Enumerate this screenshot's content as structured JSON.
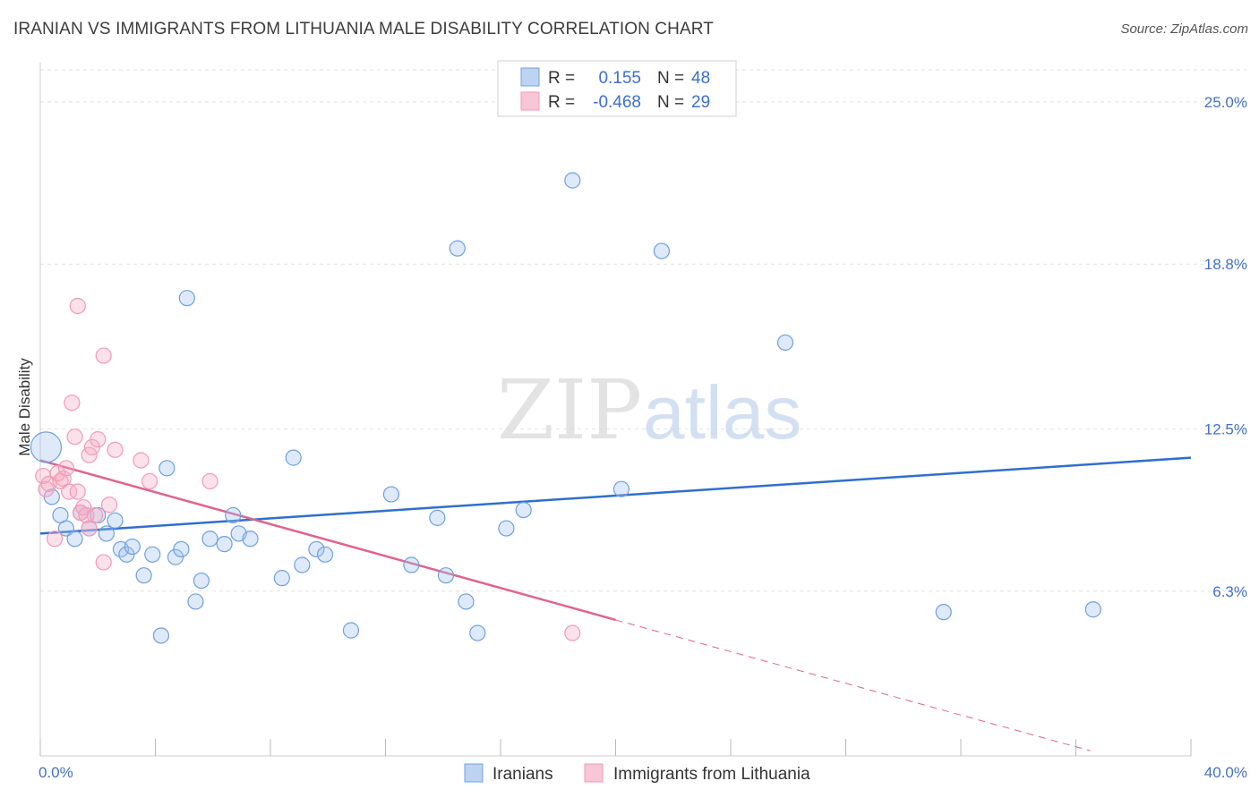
{
  "title": "IRANIAN VS IMMIGRANTS FROM LITHUANIA MALE DISABILITY CORRELATION CHART",
  "source": "Source: ZipAtlas.com",
  "watermark": {
    "zip": "ZIP",
    "atlas": "atlas"
  },
  "chart_data": {
    "type": "scatter",
    "title": "IRANIAN VS IMMIGRANTS FROM LITHUANIA MALE DISABILITY CORRELATION CHART",
    "xlabel": "",
    "ylabel": "Male Disability",
    "xlim": [
      0,
      40
    ],
    "ylim": [
      0,
      26.5
    ],
    "x_tick_labels": [
      "0.0%",
      "40.0%"
    ],
    "y_ticks": [
      6.3,
      12.5,
      18.8,
      25.0
    ],
    "y_tick_labels": [
      "6.3%",
      "12.5%",
      "18.8%",
      "25.0%"
    ],
    "grid": true,
    "legend_position": "top-center",
    "stats": [
      {
        "r_label": "R =",
        "r": "0.155",
        "n_label": "N =",
        "n": "48"
      },
      {
        "r_label": "R =",
        "r": "-0.468",
        "n_label": "N =",
        "n": "29"
      }
    ],
    "series": [
      {
        "name": "Iranians",
        "color": "#6fa0e0",
        "line_color": "#2f6fcc",
        "trend": {
          "x0": 0,
          "y0": 8.5,
          "x1": 40,
          "y1": 11.4
        },
        "points": [
          [
            0.2,
            11.8,
            28
          ],
          [
            0.4,
            9.9,
            12
          ],
          [
            0.7,
            9.2,
            10
          ],
          [
            0.9,
            8.7,
            10
          ],
          [
            1.2,
            8.3,
            10
          ],
          [
            1.4,
            9.3,
            10
          ],
          [
            1.7,
            8.7,
            10
          ],
          [
            2.0,
            9.2,
            10
          ],
          [
            2.3,
            8.5,
            10
          ],
          [
            2.6,
            9.0,
            10
          ],
          [
            2.8,
            7.9,
            10
          ],
          [
            3.0,
            7.7,
            10
          ],
          [
            3.2,
            8.0,
            10
          ],
          [
            3.6,
            6.9,
            10
          ],
          [
            3.9,
            7.7,
            10
          ],
          [
            4.2,
            4.6,
            10
          ],
          [
            4.4,
            11.0,
            10
          ],
          [
            4.7,
            7.6,
            10
          ],
          [
            4.9,
            7.9,
            10
          ],
          [
            5.1,
            17.5,
            10
          ],
          [
            5.4,
            5.9,
            10
          ],
          [
            5.6,
            6.7,
            10
          ],
          [
            5.9,
            8.3,
            10
          ],
          [
            6.4,
            8.1,
            10
          ],
          [
            6.7,
            9.2,
            10
          ],
          [
            6.9,
            8.5,
            10
          ],
          [
            7.3,
            8.3,
            10
          ],
          [
            8.4,
            6.8,
            10
          ],
          [
            8.8,
            11.4,
            10
          ],
          [
            9.1,
            7.3,
            10
          ],
          [
            9.6,
            7.9,
            10
          ],
          [
            9.9,
            7.7,
            10
          ],
          [
            10.8,
            4.8,
            10
          ],
          [
            12.2,
            10.0,
            10
          ],
          [
            12.9,
            7.3,
            10
          ],
          [
            13.8,
            9.1,
            10
          ],
          [
            14.1,
            6.9,
            10
          ],
          [
            14.5,
            19.4,
            10
          ],
          [
            14.8,
            5.9,
            10
          ],
          [
            15.2,
            4.7,
            10
          ],
          [
            16.2,
            8.7,
            10
          ],
          [
            16.8,
            9.4,
            10
          ],
          [
            18.5,
            22.0,
            10
          ],
          [
            20.2,
            10.2,
            10
          ],
          [
            21.6,
            19.3,
            10
          ],
          [
            25.9,
            15.8,
            10
          ],
          [
            31.4,
            5.5,
            10
          ],
          [
            36.6,
            5.6,
            10
          ]
        ]
      },
      {
        "name": "Immigrants from Lithuania",
        "color": "#f29ab5",
        "line_color": "#e0638f",
        "trend": {
          "x0": 0,
          "y0": 11.3,
          "x1": 20.0,
          "y1": 5.2
        },
        "trend_ext": {
          "x0": 20.0,
          "y0": 5.2,
          "x1": 36.5,
          "y1": 0.2
        },
        "points": [
          [
            0.1,
            10.7,
            10
          ],
          [
            0.2,
            10.2,
            10
          ],
          [
            0.3,
            10.4,
            10
          ],
          [
            0.5,
            8.3,
            10
          ],
          [
            0.6,
            10.8,
            10
          ],
          [
            0.7,
            10.5,
            10
          ],
          [
            0.8,
            10.6,
            10
          ],
          [
            0.9,
            11.0,
            10
          ],
          [
            1.0,
            10.1,
            10
          ],
          [
            1.1,
            13.5,
            10
          ],
          [
            1.2,
            12.2,
            10
          ],
          [
            1.3,
            10.1,
            10
          ],
          [
            1.3,
            17.2,
            10
          ],
          [
            1.4,
            9.3,
            10
          ],
          [
            1.5,
            9.5,
            10
          ],
          [
            1.6,
            9.2,
            10
          ],
          [
            1.7,
            11.5,
            10
          ],
          [
            1.7,
            8.7,
            10
          ],
          [
            1.8,
            11.8,
            10
          ],
          [
            1.9,
            9.2,
            10
          ],
          [
            2.0,
            12.1,
            10
          ],
          [
            2.2,
            7.4,
            10
          ],
          [
            2.2,
            15.3,
            10
          ],
          [
            2.4,
            9.6,
            10
          ],
          [
            2.6,
            11.7,
            10
          ],
          [
            3.5,
            11.3,
            10
          ],
          [
            3.8,
            10.5,
            10
          ],
          [
            5.9,
            10.5,
            10
          ],
          [
            18.5,
            4.7,
            10
          ]
        ]
      }
    ]
  }
}
